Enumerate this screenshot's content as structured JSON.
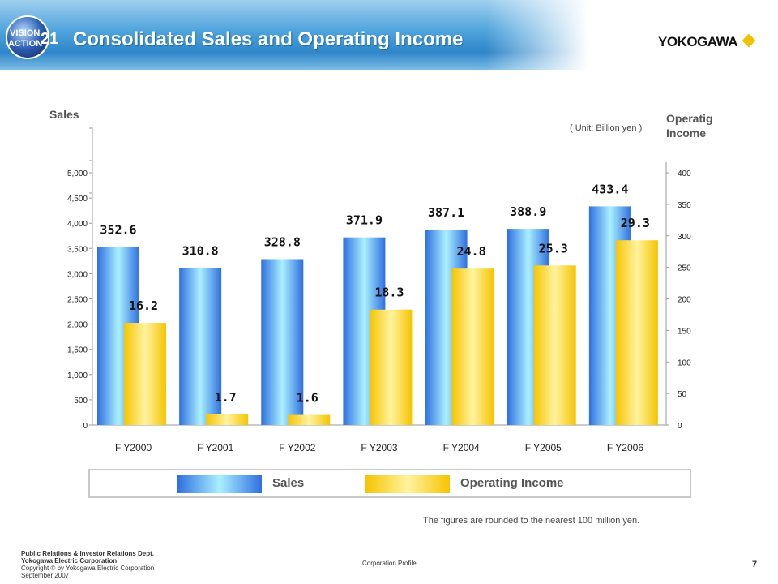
{
  "header": {
    "logo_text_top": "VISION",
    "logo_text_bottom": "ACTION",
    "logo_number": "21",
    "title": "Consolidated Sales and Operating Income",
    "brand": "YOKOGAWA",
    "colors": {
      "header_blue": "#2f86c9",
      "brand_diamond": "#f2c200"
    }
  },
  "chart_data": {
    "type": "bar",
    "categories": [
      "F Y2000",
      "F Y2001",
      "F Y2002",
      "F Y2003",
      "F Y2004",
      "F Y2005",
      "F Y2006"
    ],
    "series": [
      {
        "name": "Sales",
        "axis": "left",
        "values": [
          352.6,
          310.8,
          328.8,
          371.9,
          387.1,
          388.9,
          433.4
        ],
        "color": "#3f7fe6"
      },
      {
        "name": "Operating Income",
        "axis": "right",
        "values": [
          16.2,
          1.7,
          1.6,
          18.3,
          24.8,
          25.3,
          29.3
        ],
        "color": "#f5c400"
      }
    ],
    "left_axis": {
      "title": "Sales",
      "ticks": [
        "0",
        "500",
        "1,000",
        "1,500",
        "2,000",
        "2,500",
        "3,000",
        "3,500",
        "4,000",
        "4,500",
        "5,000"
      ]
    },
    "right_axis": {
      "title_line1": "Operatig",
      "title_line2": "Income",
      "ticks": [
        "0",
        "50",
        "100",
        "150",
        "200",
        "250",
        "300",
        "350",
        "400"
      ]
    },
    "unit": "( Unit: Billion yen )",
    "legend": {
      "placement": "bottom",
      "sales_label": "Sales",
      "income_label": "Operating Income"
    }
  },
  "footnote": "The figures are rounded to the nearest 100 million yen.",
  "footer": {
    "dept": "Public Relations & Investor Relations Dept.",
    "company": "Yokogawa Electric Corporation",
    "copyright": "Copyright © by Yokogawa Electric Corporation",
    "date": "September 2007",
    "center": "Corporation Profile",
    "page_number": "7"
  }
}
